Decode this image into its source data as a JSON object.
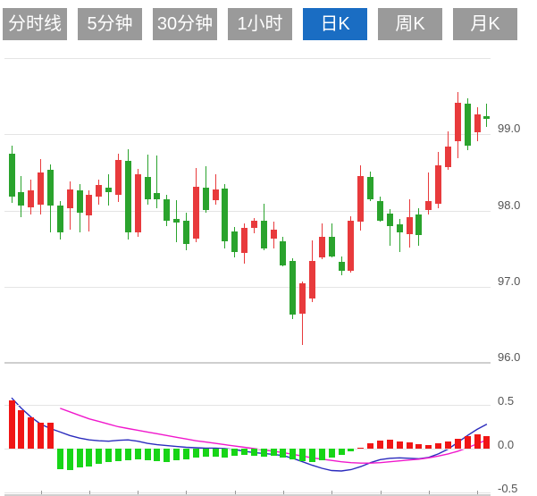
{
  "app": {
    "type": "stock-kline-viewer"
  },
  "tabs": {
    "active_index": 4,
    "items": [
      {
        "label": "分时线"
      },
      {
        "label": "5分钟"
      },
      {
        "label": "30分钟"
      },
      {
        "label": "1小时"
      },
      {
        "label": "日K"
      },
      {
        "label": "周K"
      },
      {
        "label": "月K"
      }
    ]
  },
  "colors": {
    "tab_inactive_bg": "#9a9a9a",
    "tab_active_bg": "#1a6dc3",
    "tab_text": "#ffffff",
    "candle_up": "#e83a3c",
    "candle_down": "#2aa32d",
    "macd_hist_up": "#f01515",
    "macd_hist_down": "#17d517",
    "dif_line": "#2b2bbd",
    "dea_line": "#f018cc",
    "gridline": "#e4e4e4",
    "axis_line": "#cfcfcf",
    "axis_label": "#555555"
  },
  "chart_data": {
    "type": "candlestick",
    "period": "日K",
    "candle_count": 50,
    "color_convention": "red-up-green-down",
    "y_axis": {
      "side": "right",
      "range": [
        96.0,
        100.0
      ],
      "grid": true,
      "gridlines": [
        {
          "value": 100.0,
          "label": ""
        },
        {
          "value": 99.0,
          "label": "99.0"
        },
        {
          "value": 98.0,
          "label": "98.0"
        },
        {
          "value": 97.0,
          "label": "97.0"
        },
        {
          "value": 96.0,
          "label": "96.0",
          "axis": true
        }
      ]
    },
    "x_axis": {
      "labels_visible": false,
      "tick_every_n_candles": 5
    },
    "ohlc_order": [
      "open",
      "high",
      "low",
      "close"
    ],
    "candles": [
      [
        98.75,
        98.85,
        98.1,
        98.18
      ],
      [
        98.24,
        98.45,
        97.91,
        98.07
      ],
      [
        98.04,
        98.4,
        97.95,
        98.26
      ],
      [
        98.08,
        98.67,
        97.95,
        98.5
      ],
      [
        98.53,
        98.61,
        97.71,
        98.06
      ],
      [
        98.06,
        98.12,
        97.62,
        97.71
      ],
      [
        98.03,
        98.38,
        97.75,
        98.28
      ],
      [
        98.26,
        98.35,
        97.71,
        97.97
      ],
      [
        97.93,
        98.27,
        97.73,
        98.21
      ],
      [
        98.18,
        98.4,
        98.08,
        98.34
      ],
      [
        98.3,
        98.48,
        98.06,
        98.24
      ],
      [
        98.21,
        98.74,
        98.11,
        98.66
      ],
      [
        98.65,
        98.8,
        97.62,
        97.71
      ],
      [
        97.71,
        98.55,
        97.65,
        98.47
      ],
      [
        98.44,
        98.73,
        98.08,
        98.15
      ],
      [
        98.23,
        98.72,
        98.03,
        98.15
      ],
      [
        98.15,
        98.21,
        97.8,
        97.87
      ],
      [
        97.89,
        98.13,
        97.58,
        97.84
      ],
      [
        97.86,
        97.97,
        97.48,
        97.56
      ],
      [
        97.63,
        98.56,
        97.58,
        98.31
      ],
      [
        98.3,
        98.58,
        97.97,
        98.0
      ],
      [
        98.13,
        98.47,
        98.08,
        98.28
      ],
      [
        98.29,
        98.35,
        97.5,
        97.6
      ],
      [
        97.72,
        97.78,
        97.38,
        97.45
      ],
      [
        97.44,
        97.83,
        97.3,
        97.77
      ],
      [
        97.77,
        97.9,
        97.7,
        97.86
      ],
      [
        97.87,
        98.09,
        97.48,
        97.5
      ],
      [
        97.63,
        97.85,
        97.5,
        97.75
      ],
      [
        97.6,
        97.66,
        97.27,
        97.28
      ],
      [
        97.34,
        97.37,
        96.57,
        96.63
      ],
      [
        96.64,
        97.07,
        96.23,
        97.04
      ],
      [
        96.84,
        97.61,
        96.8,
        97.34
      ],
      [
        97.39,
        97.83,
        97.36,
        97.66
      ],
      [
        97.66,
        97.83,
        97.39,
        97.4
      ],
      [
        97.33,
        97.4,
        97.15,
        97.21
      ],
      [
        97.21,
        97.92,
        97.18,
        97.87
      ],
      [
        97.85,
        98.59,
        97.74,
        98.45
      ],
      [
        98.44,
        98.51,
        98.12,
        98.15
      ],
      [
        98.12,
        98.18,
        97.85,
        97.87
      ],
      [
        97.96,
        98.02,
        97.54,
        97.79
      ],
      [
        97.82,
        97.89,
        97.46,
        97.71
      ],
      [
        97.69,
        98.15,
        97.51,
        97.91
      ],
      [
        97.95,
        98.03,
        97.54,
        97.68
      ],
      [
        98.0,
        98.5,
        97.95,
        98.12
      ],
      [
        98.09,
        98.77,
        98.03,
        98.59
      ],
      [
        98.57,
        99.04,
        98.53,
        98.84
      ],
      [
        98.91,
        99.55,
        98.69,
        99.41
      ],
      [
        99.4,
        99.47,
        98.79,
        98.85
      ],
      [
        99.03,
        99.36,
        98.91,
        99.26
      ],
      [
        99.24,
        99.4,
        99.1,
        99.2
      ]
    ],
    "macd": {
      "y_axis": {
        "side": "right",
        "range": [
          -0.5,
          0.5
        ],
        "gridlines": [
          {
            "value": 0.5,
            "label": "0.5"
          },
          {
            "value": 0.0,
            "label": "0.0"
          },
          {
            "value": -0.5,
            "label": "-0.5",
            "axis": true
          }
        ]
      },
      "histogram": [
        0.55,
        0.44,
        0.36,
        0.3,
        0.3,
        -0.23,
        -0.24,
        -0.21,
        -0.2,
        -0.17,
        -0.15,
        -0.14,
        -0.13,
        -0.12,
        -0.13,
        -0.14,
        -0.15,
        -0.13,
        -0.12,
        -0.1,
        -0.09,
        -0.09,
        -0.1,
        -0.08,
        -0.07,
        -0.08,
        -0.09,
        -0.08,
        -0.1,
        -0.12,
        -0.14,
        -0.15,
        -0.13,
        -0.1,
        -0.07,
        -0.03,
        0.01,
        0.06,
        0.09,
        0.1,
        0.08,
        0.07,
        0.05,
        0.04,
        0.06,
        0.08,
        0.11,
        0.14,
        0.16,
        0.14
      ],
      "dif": [
        0.58,
        0.46,
        0.36,
        0.28,
        0.23,
        0.19,
        0.15,
        0.12,
        0.1,
        0.09,
        0.085,
        0.095,
        0.1,
        0.085,
        0.06,
        0.045,
        0.035,
        0.025,
        0.015,
        0.01,
        0.005,
        0.005,
        0.0,
        -0.01,
        -0.03,
        -0.045,
        -0.055,
        -0.065,
        -0.08,
        -0.11,
        -0.15,
        -0.19,
        -0.225,
        -0.25,
        -0.255,
        -0.24,
        -0.205,
        -0.16,
        -0.125,
        -0.11,
        -0.105,
        -0.11,
        -0.115,
        -0.1,
        -0.06,
        -0.005,
        0.07,
        0.15,
        0.22,
        0.28
      ],
      "dea": [
        null,
        null,
        null,
        null,
        null,
        0.46,
        0.42,
        0.38,
        0.34,
        0.31,
        0.28,
        0.25,
        0.23,
        0.21,
        0.19,
        0.17,
        0.15,
        0.13,
        0.11,
        0.09,
        0.075,
        0.06,
        0.045,
        0.03,
        0.015,
        0.0,
        -0.015,
        -0.03,
        -0.045,
        -0.065,
        -0.085,
        -0.105,
        -0.12,
        -0.135,
        -0.15,
        -0.16,
        -0.165,
        -0.165,
        -0.16,
        -0.15,
        -0.14,
        -0.13,
        -0.12,
        -0.105,
        -0.085,
        -0.06,
        -0.03,
        0.01,
        0.055,
        0.1
      ]
    }
  }
}
